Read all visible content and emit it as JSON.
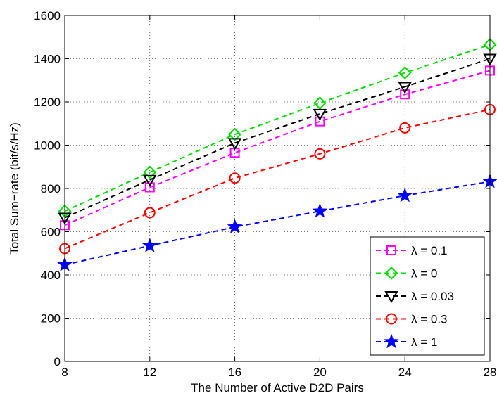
{
  "chart_data": {
    "type": "line",
    "xlabel": "The Number of Active D2D Pairs",
    "ylabel": "Total Sum−rate (bit/s/Hz)",
    "xlim": [
      8,
      28
    ],
    "ylim": [
      0,
      1600
    ],
    "x_ticks": [
      8,
      12,
      16,
      20,
      24,
      28
    ],
    "y_ticks": [
      0,
      200,
      400,
      600,
      800,
      1000,
      1200,
      1400,
      1600
    ],
    "grid": true,
    "legend_position": "bottom-right",
    "x": [
      8,
      12,
      16,
      20,
      24,
      28
    ],
    "series": [
      {
        "name": "λ = 0.1",
        "values": [
          630,
          805,
          965,
          1110,
          1235,
          1345
        ],
        "color": "#ff00ff",
        "marker": "square"
      },
      {
        "name": "λ = 0",
        "values": [
          695,
          875,
          1050,
          1195,
          1335,
          1465
        ],
        "color": "#00dd00",
        "marker": "diamond"
      },
      {
        "name": "λ = 0.03",
        "values": [
          665,
          840,
          1010,
          1145,
          1270,
          1400
        ],
        "color": "#000000",
        "marker": "triangle-down"
      },
      {
        "name": "λ = 0.3",
        "values": [
          522,
          688,
          848,
          960,
          1080,
          1165
        ],
        "color": "#ff0000",
        "marker": "circle"
      },
      {
        "name": "λ = 1",
        "values": [
          447,
          535,
          622,
          695,
          767,
          832
        ],
        "color": "#0000ff",
        "marker": "star"
      }
    ]
  }
}
